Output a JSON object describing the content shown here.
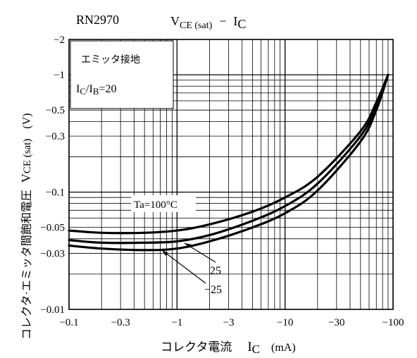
{
  "chart_data": {
    "type": "line",
    "title": {
      "part_number": "RN2970",
      "formula_main": "V",
      "formula_sub": "CE (sat)",
      "formula_dash": "−",
      "formula_ic": "I",
      "formula_ic_sub": "C"
    },
    "ylabel": {
      "main": "コレクタ·エミッタ間飽和電圧",
      "symbol": "V",
      "symbol_sub": "CE (sat)",
      "unit": "(V)"
    },
    "xlabel": {
      "main": "コレクタ電流",
      "symbol": "I",
      "symbol_sub": "C",
      "unit": "(mA)"
    },
    "x_scale": "log",
    "y_scale": "log",
    "xlim": [
      -0.1,
      -100
    ],
    "ylim": [
      -0.01,
      -2
    ],
    "x_ticks": [
      "-0.1",
      "-0.3",
      "-1",
      "-3",
      "-10",
      "-30",
      "-100"
    ],
    "y_ticks": [
      "-2",
      "-1",
      "-0.5",
      "-0.3",
      "-0.1",
      "-0.05",
      "-0.03",
      "-0.01"
    ],
    "x_tick_values": [
      -0.1,
      -0.3,
      -1,
      -3,
      -10,
      -30,
      -100
    ],
    "y_tick_values": [
      -2,
      -1,
      -0.5,
      -0.3,
      -0.1,
      -0.05,
      -0.03,
      -0.01
    ],
    "grid": true,
    "legend_box": {
      "line1": "エミッタ接地",
      "line2_main": "I",
      "line2_sub1": "C",
      "line2_mid": "/I",
      "line2_sub2": "B",
      "line2_end": "=20"
    },
    "series": [
      {
        "name": "Ta=100°C",
        "x": [
          -0.1,
          -0.2,
          -0.5,
          -1,
          -2,
          -5,
          -10,
          -20,
          -50,
          -70,
          -90
        ],
        "y": [
          -0.047,
          -0.045,
          -0.045,
          -0.047,
          -0.053,
          -0.068,
          -0.09,
          -0.135,
          -0.33,
          -0.58,
          -1.0
        ]
      },
      {
        "name": "25",
        "x": [
          -0.1,
          -0.2,
          -0.5,
          -1,
          -2,
          -5,
          -10,
          -20,
          -50,
          -70,
          -90
        ],
        "y": [
          -0.039,
          -0.037,
          -0.037,
          -0.038,
          -0.043,
          -0.057,
          -0.076,
          -0.118,
          -0.3,
          -0.54,
          -1.0
        ]
      },
      {
        "name": "−25",
        "x": [
          -0.1,
          -0.2,
          -0.5,
          -1,
          -2,
          -5,
          -10,
          -20,
          -50,
          -70,
          -90
        ],
        "y": [
          -0.035,
          -0.033,
          -0.032,
          -0.033,
          -0.038,
          -0.05,
          -0.066,
          -0.103,
          -0.27,
          -0.5,
          -1.0
        ]
      }
    ],
    "series_labels": {
      "ta100": "Ta=100°C",
      "t25": "25",
      "tm25": "−25"
    }
  }
}
